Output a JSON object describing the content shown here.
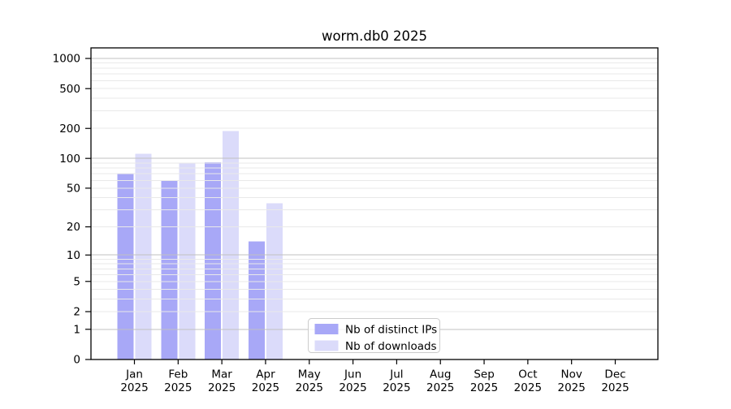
{
  "chart_data": {
    "type": "bar",
    "title": "worm.db0 2025",
    "months": [
      "Jan",
      "Feb",
      "Mar",
      "Apr",
      "May",
      "Jun",
      "Jul",
      "Aug",
      "Sep",
      "Oct",
      "Nov",
      "Dec"
    ],
    "year": "2025",
    "series": [
      {
        "name": "Nb of distinct IPs",
        "color": "#a8a8f7",
        "values": [
          70,
          59,
          91,
          14,
          0,
          0,
          0,
          0,
          0,
          0,
          0,
          0
        ]
      },
      {
        "name": "Nb of downloads",
        "color": "#dbdbfa",
        "values": [
          111,
          89,
          189,
          35,
          0,
          0,
          0,
          0,
          0,
          0,
          0,
          0
        ]
      }
    ],
    "yscale": "log1p",
    "yticks": [
      0,
      1,
      2,
      5,
      10,
      20,
      50,
      100,
      200,
      500,
      1000
    ],
    "ylim": [
      0,
      1275
    ],
    "grid": {
      "enabled": true,
      "major_color": "#c0c0c0",
      "minor_color": "#e9e9e9",
      "above_bars": true
    },
    "legend": {
      "position": "lower center"
    }
  },
  "colors": {
    "background": "#ffffff",
    "axis": "#000000",
    "legend_border": "#cccccc"
  }
}
